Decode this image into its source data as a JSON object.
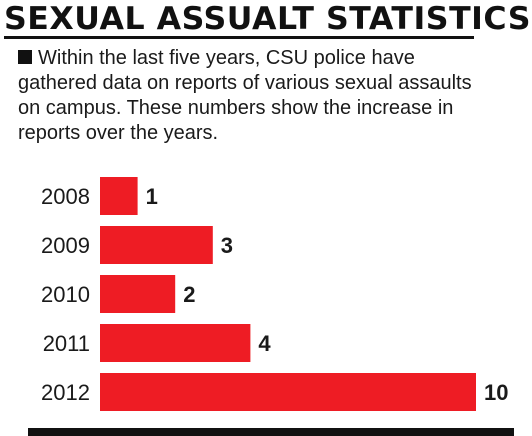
{
  "title": "SEXUAL ASSUALT STATISTICS",
  "intro_text": "Within the last five years, CSU police have gathered data on reports of various sexual assaults on campus. These numbers show the increase in reports over the years.",
  "colors": {
    "bar": "#ee1c24",
    "text": "#1a1a1a"
  },
  "chart_data": {
    "type": "bar",
    "orientation": "horizontal",
    "categories": [
      "2008",
      "2009",
      "2010",
      "2011",
      "2012"
    ],
    "values": [
      1,
      3,
      2,
      4,
      10
    ],
    "title": "",
    "xlabel": "",
    "ylabel": "",
    "xlim": [
      0,
      10
    ],
    "grid": false,
    "data_labels": true
  }
}
